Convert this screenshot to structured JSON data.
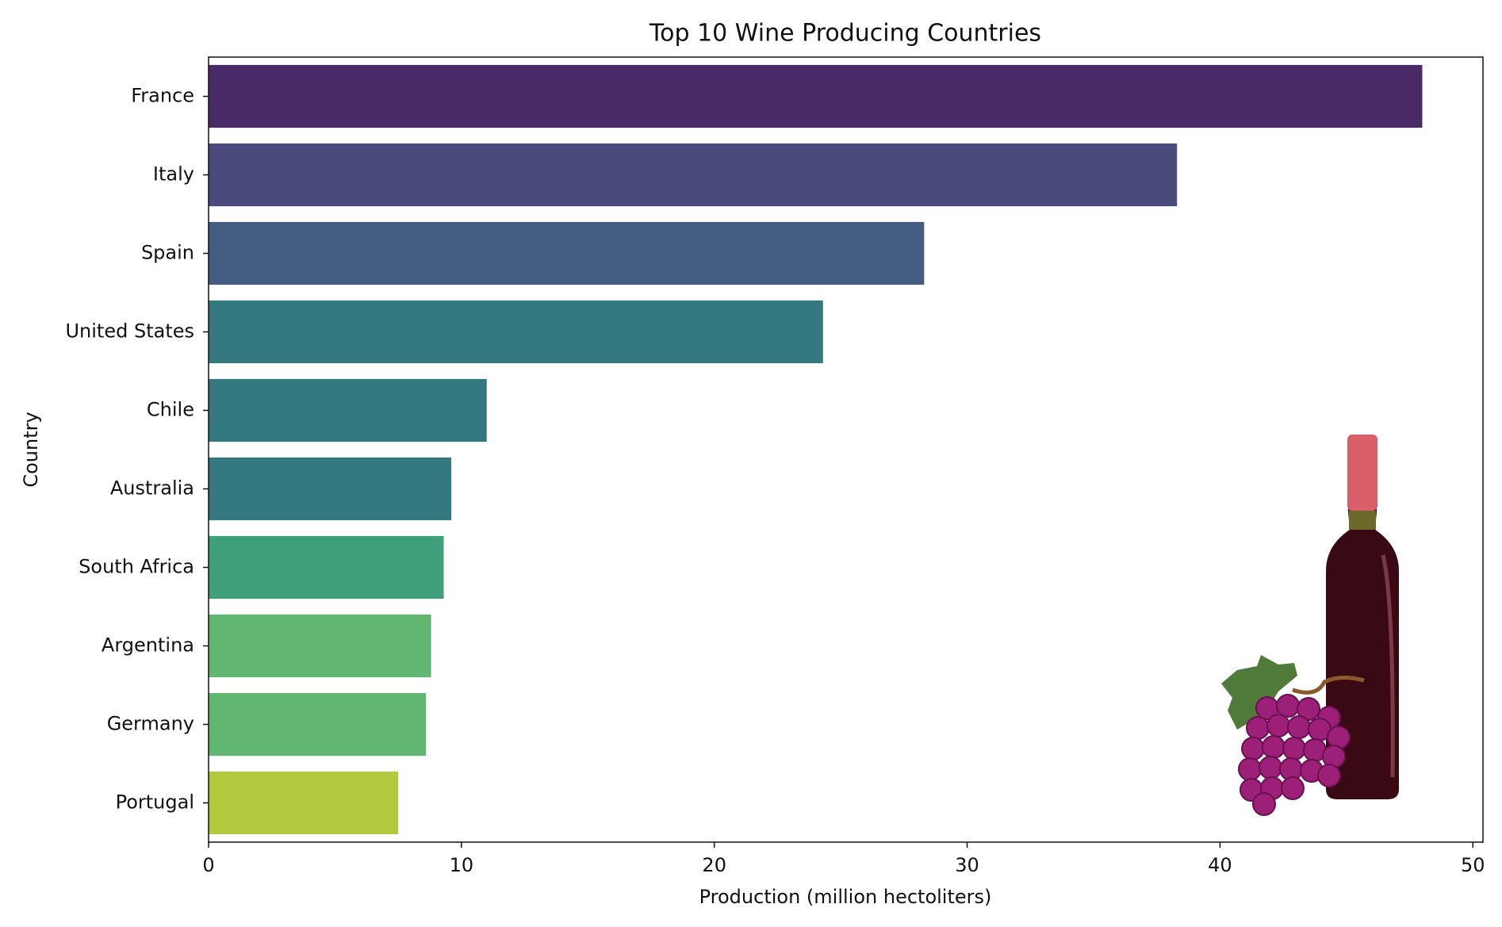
{
  "chart_data": {
    "type": "barh",
    "title": "Top 10 Wine Producing Countries",
    "x_label": "Production (million hectoliters)",
    "y_label": "Country",
    "categories": [
      "France",
      "Italy",
      "Spain",
      "United States",
      "Chile",
      "Australia",
      "South Africa",
      "Argentina",
      "Germany",
      "Portugal"
    ],
    "values": [
      48.0,
      38.3,
      28.3,
      24.3,
      11.0,
      9.6,
      9.3,
      8.8,
      8.6,
      7.5
    ],
    "colors": [
      "#4a2a66",
      "#4b4a7d",
      "#455c82",
      "#33797f",
      "#33797f",
      "#33797f",
      "#3e9f7a",
      "#61b672",
      "#61b672",
      "#b2c93d"
    ],
    "xlim": [
      0,
      50.4
    ],
    "xticks": [
      0,
      10,
      20,
      30,
      40,
      50
    ],
    "grid": false
  }
}
